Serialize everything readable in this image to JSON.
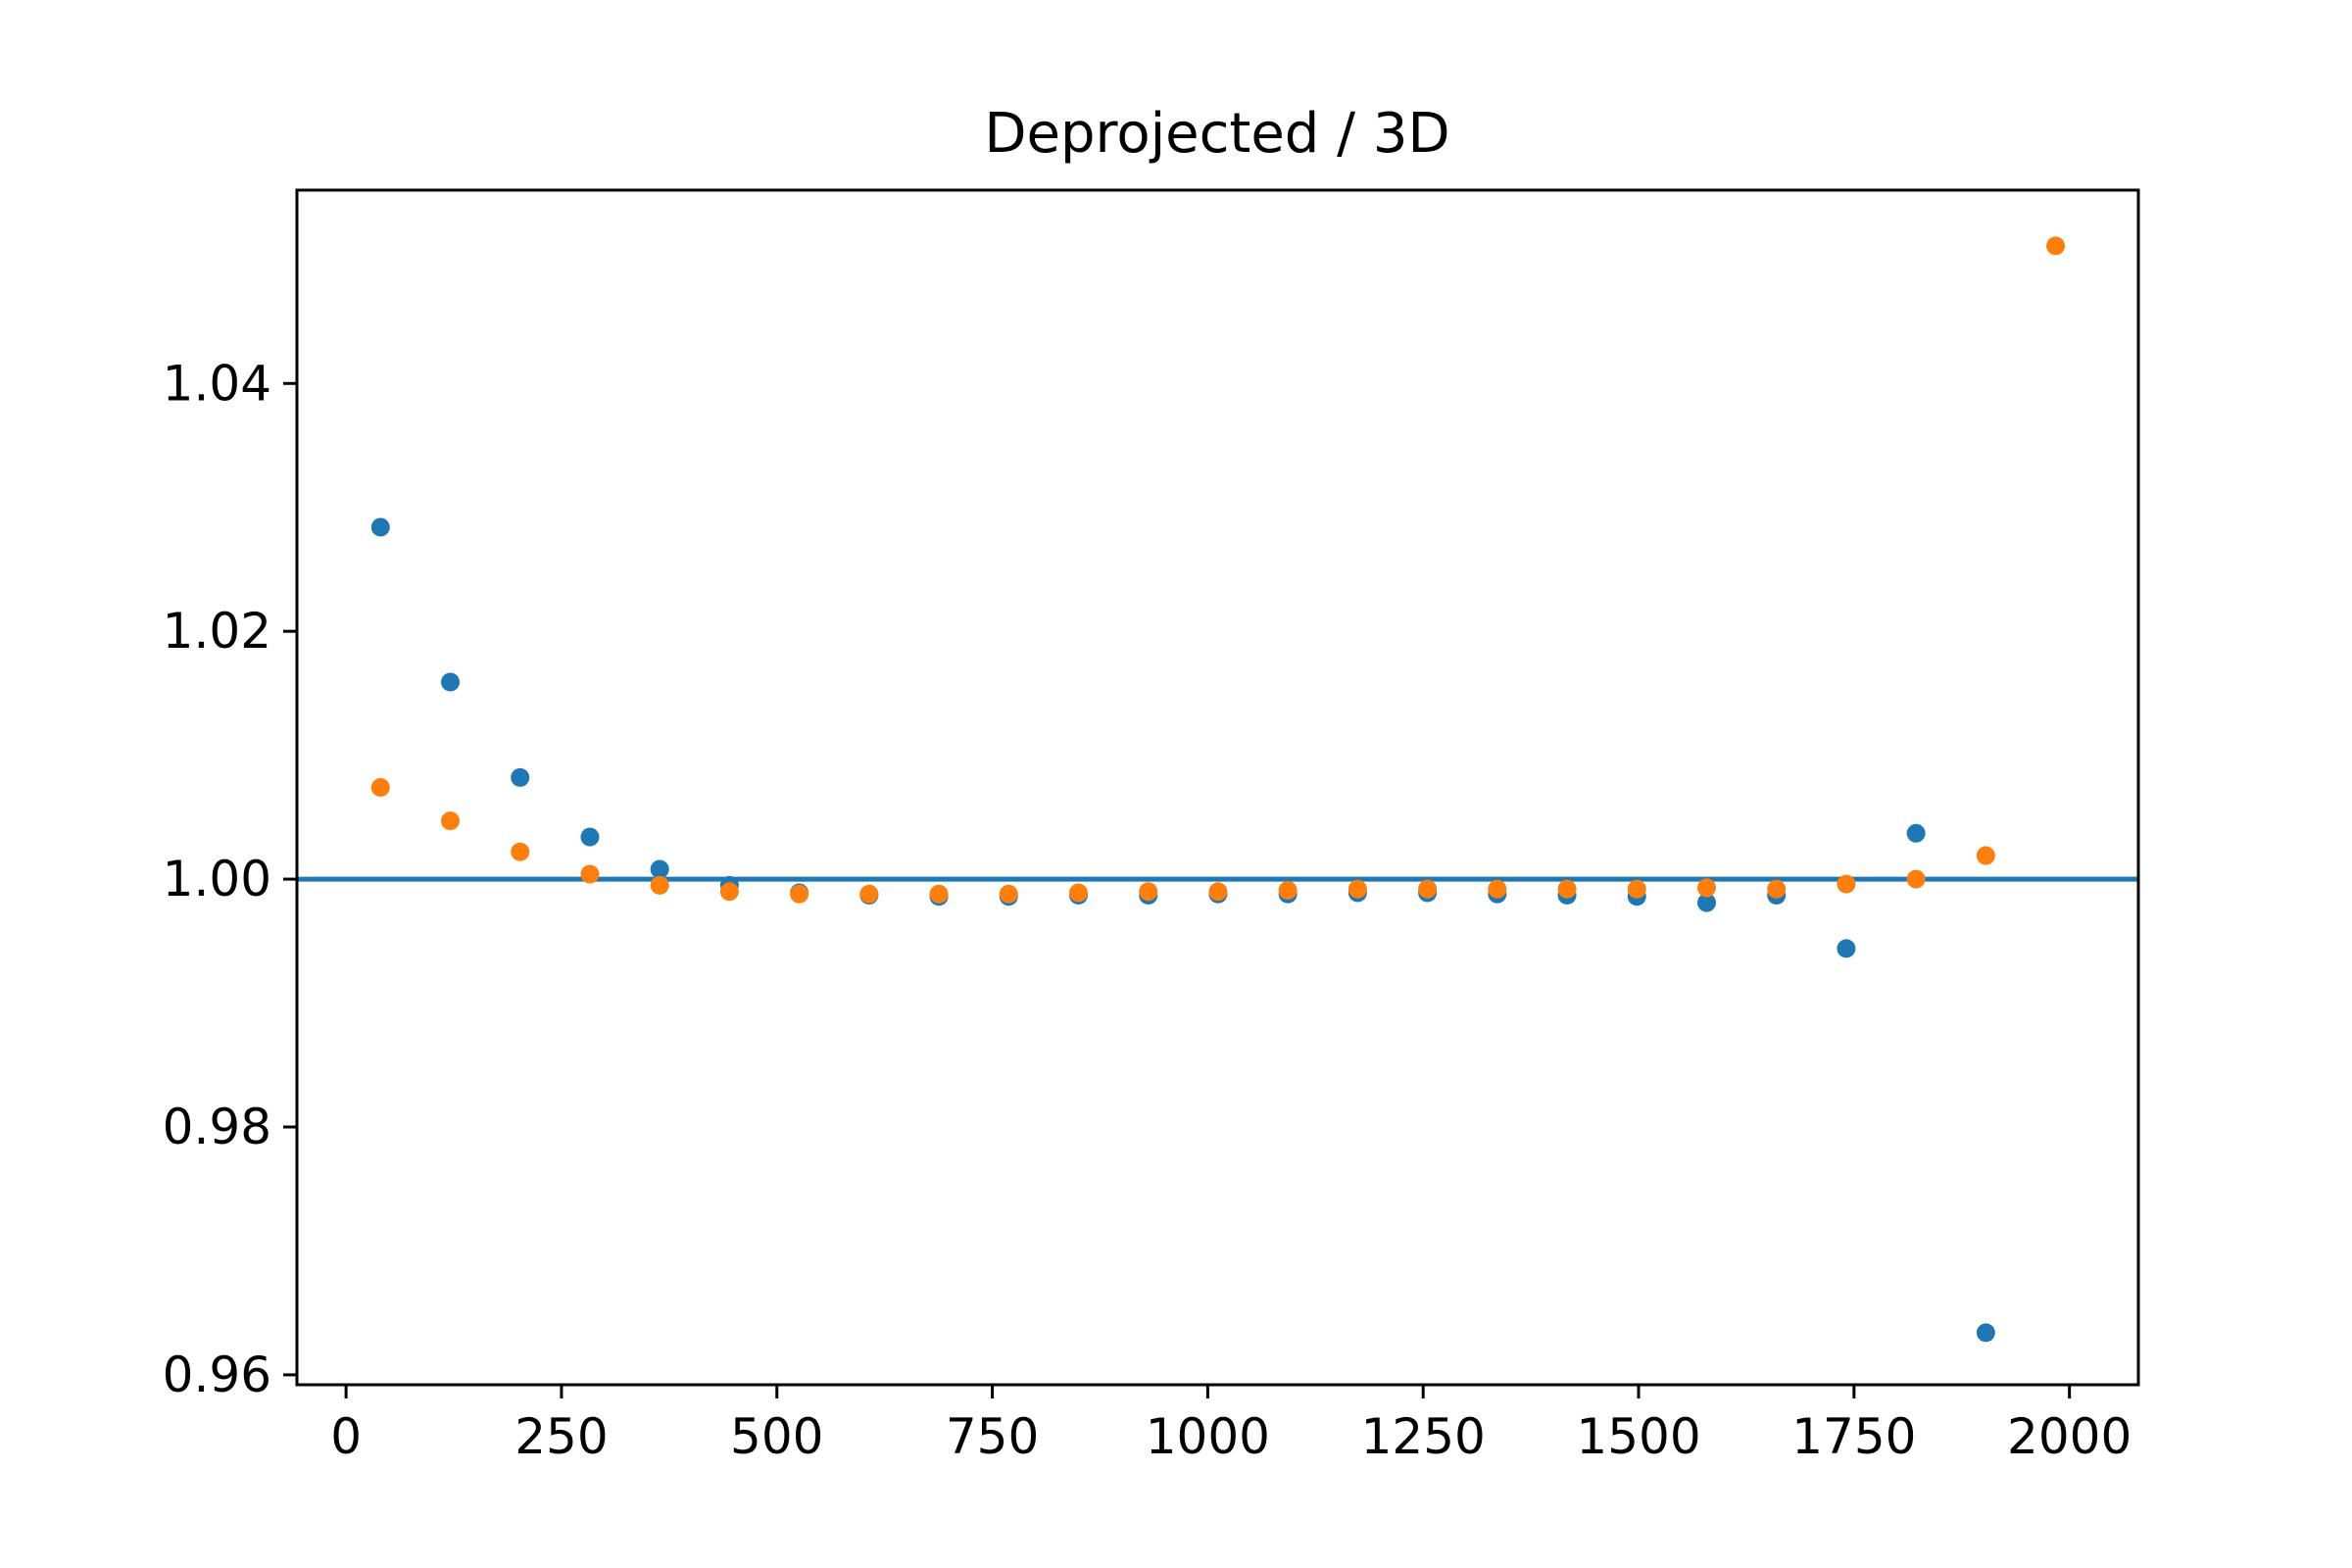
{
  "chart_data": {
    "type": "scatter",
    "title": "Deprojected / 3D",
    "xlabel": "",
    "ylabel": "",
    "xlim": [
      -57,
      2080
    ],
    "ylim": [
      0.9592,
      1.0556
    ],
    "xticks": [
      0,
      250,
      500,
      750,
      1000,
      1250,
      1500,
      1750,
      2000
    ],
    "xtick_labels": [
      "0",
      "250",
      "500",
      "750",
      "1000",
      "1250",
      "1500",
      "1750",
      "2000"
    ],
    "yticks": [
      0.96,
      0.98,
      1.0,
      1.02,
      1.04
    ],
    "ytick_labels": [
      "0.96",
      "0.98",
      "1.00",
      "1.02",
      "1.04"
    ],
    "grid": false,
    "reference_line": {
      "y": 1.0,
      "color": "#1f77b4"
    },
    "series": [
      {
        "color": "#1f77b4",
        "x": [
          40,
          121,
          202,
          283,
          364,
          445,
          526,
          607,
          688,
          769,
          850,
          931,
          1012,
          1093,
          1174,
          1255,
          1336,
          1417,
          1498,
          1579,
          1660,
          1741,
          1822,
          1903
        ],
        "y": [
          1.0284,
          1.0159,
          1.0082,
          1.0034,
          1.0008,
          0.9995,
          0.9989,
          0.9987,
          0.9986,
          0.9986,
          0.9987,
          0.9987,
          0.9988,
          0.9988,
          0.9989,
          0.9989,
          0.9988,
          0.9987,
          0.9986,
          0.9981,
          0.9987,
          0.9944,
          1.0037,
          0.9634
        ]
      },
      {
        "color": "#ff7f0e",
        "x": [
          40,
          121,
          202,
          283,
          364,
          445,
          526,
          607,
          688,
          769,
          850,
          931,
          1012,
          1093,
          1174,
          1255,
          1336,
          1417,
          1498,
          1579,
          1660,
          1741,
          1822,
          1903,
          1984
        ],
        "y": [
          1.0074,
          1.0047,
          1.0022,
          1.0004,
          0.9995,
          0.999,
          0.9988,
          0.9988,
          0.9988,
          0.9988,
          0.9989,
          0.999,
          0.999,
          0.9991,
          0.9992,
          0.9992,
          0.9992,
          0.9992,
          0.9992,
          0.9993,
          0.9992,
          0.9996,
          1.0,
          1.0019,
          1.0511
        ]
      }
    ]
  }
}
